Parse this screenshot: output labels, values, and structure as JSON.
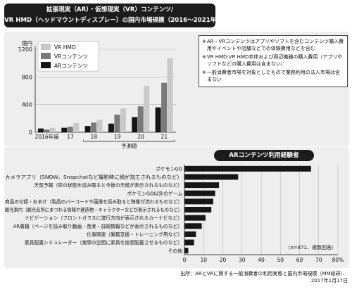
{
  "title": {
    "line1": "拡張現実（AR）・仮想現実（VR）コンテンツ/",
    "line2": "VR HMD（ヘッドマウントディスプレー）の国内市場規模（2016〜2021年度）"
  },
  "notes": [
    {
      "mark": "※",
      "text": "AR・VRコンテンツはアプリやソフトを含むコンテンツ購入費用やイベントや店舗などでの体験費用などを含む"
    },
    {
      "mark": "※",
      "text": "VR HMD:VR HMD本体および周辺機器の購入費用（アプリやソフトなどの購入費用は含まない）"
    },
    {
      "mark": "※",
      "text": "一般消費者市場を対象としたもので業務利用の法人市場は含まない"
    }
  ],
  "chart2_title": "ARコンテンツ利用経験者",
  "source": {
    "line1": "出所：ARとVRに関する一般消費者の利用実態と国内市場規模（MM総研）、",
    "line2": "2017年1月17日"
  },
  "colors": {
    "vr_hmd": "#c9c9c9",
    "vr_content": "#7a7a7a",
    "ar_content": "#161616",
    "panel": "#eeeeee"
  },
  "chart_data": [
    {
      "type": "bar",
      "title": "",
      "unit_label": "億円",
      "xlabel": "",
      "ylabel": "",
      "categories": [
        "2016年度",
        "17",
        "18",
        "19",
        "20",
        "21"
      ],
      "forecast_label": "予測値",
      "forecast_from_index": 2,
      "series": [
        {
          "name": "VR HMD",
          "color": "#c9c9c9",
          "values": [
            65,
            135,
            180,
            345,
            670,
            1070
          ]
        },
        {
          "name": "VRコンテンツ",
          "color": "#7a7a7a",
          "values": [
            40,
            80,
            140,
            255,
            375,
            715
          ]
        },
        {
          "name": "ARコンテンツ",
          "color": "#161616",
          "values": [
            55,
            65,
            90,
            125,
            220,
            360
          ]
        }
      ],
      "ylim": [
        0,
        1200
      ],
      "yticks": [
        0,
        400,
        800,
        1200
      ],
      "grid": true,
      "legend_position": "top-left"
    },
    {
      "type": "bar",
      "orientation": "horizontal",
      "title": "ARコンテンツ利用経験者",
      "categories": [
        "ポケモンGO",
        "カメラアプリ（SNOW、Snapchatなど撮影時に顔が加工されるものなど）",
        "天気予報（空の状態を読み取ると今後の天候が表示されるものなど）",
        "ポケモンGO以外のゲーム",
        "商品の付録・おまけ（製品のバーコードや画像を読み取ると映像が流れるものなど）",
        "観光案内（観光名所にまつわる情報や建造物・キャラクターなどが表示されるものなど）",
        "ナビゲーション（フロントガラスに進行方向が表示されるカーナビなど）",
        "AR書籍（ページを読み取り動画・音楽・詳細情報などが表示されるものなど）",
        "仕事関連（業務支援・トレーニング用など）",
        "家具配置シミュレーター（実際の空間に家具を仮想配置させるものなど）",
        "その他"
      ],
      "values": [
        66,
        28,
        18,
        16,
        15,
        14,
        11,
        9,
        6,
        5,
        2
      ],
      "xlim": [
        0,
        80
      ],
      "xticks": [
        0,
        10,
        20,
        30,
        40,
        50,
        60,
        70,
        80
      ],
      "xtick_suffix_last": "%",
      "grid": true,
      "annotation": "（n=871、複数回答）",
      "bar_color": "#161616"
    }
  ]
}
